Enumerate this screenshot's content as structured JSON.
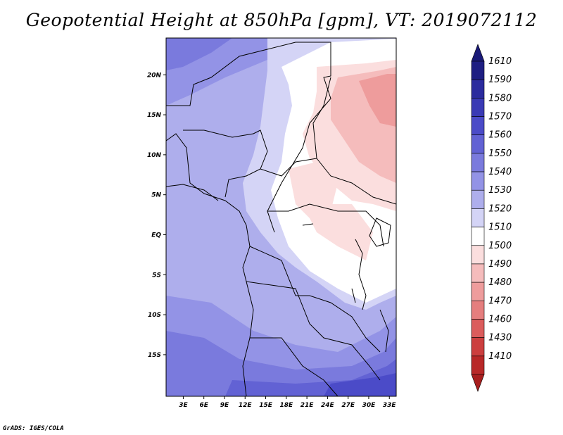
{
  "title": "Geopotential Height at 850hPa [gpm], VT: 2019072112",
  "credit": "GrADS: IGES/COLA",
  "map": {
    "lat_ticks": [
      {
        "label": "20N",
        "lat": 20
      },
      {
        "label": "15N",
        "lat": 15
      },
      {
        "label": "10N",
        "lat": 10
      },
      {
        "label": "5N",
        "lat": 5
      },
      {
        "label": "EQ",
        "lat": 0
      },
      {
        "label": "5S",
        "lat": -5
      },
      {
        "label": "10S",
        "lat": -10
      },
      {
        "label": "15S",
        "lat": -15
      }
    ],
    "lon_ticks": [
      {
        "label": "3E",
        "lon": 3
      },
      {
        "label": "6E",
        "lon": 6
      },
      {
        "label": "9E",
        "lon": 9
      },
      {
        "label": "12E",
        "lon": 12
      },
      {
        "label": "15E",
        "lon": 15
      },
      {
        "label": "18E",
        "lon": 18
      },
      {
        "label": "21E",
        "lon": 21
      },
      {
        "label": "24E",
        "lon": 24
      },
      {
        "label": "27E",
        "lon": 27
      },
      {
        "label": "30E",
        "lon": 30
      },
      {
        "label": "33E",
        "lon": 33
      }
    ],
    "colorbar": [
      {
        "label": "1610",
        "color": "#1e1e82"
      },
      {
        "label": "1590",
        "color": "#2b2b9e"
      },
      {
        "label": "1580",
        "color": "#3a3ab5"
      },
      {
        "label": "1570",
        "color": "#4b4bc8"
      },
      {
        "label": "1560",
        "color": "#6262d4"
      },
      {
        "label": "1550",
        "color": "#7a7add"
      },
      {
        "label": "1540",
        "color": "#9393e6"
      },
      {
        "label": "1530",
        "color": "#aeaeec"
      },
      {
        "label": "1520",
        "color": "#d4d4f6"
      },
      {
        "label": "1510",
        "color": "#ffffff"
      },
      {
        "label": "1500",
        "color": "#fbdede"
      },
      {
        "label": "1490",
        "color": "#f5bcbc"
      },
      {
        "label": "1480",
        "color": "#ee9c9c"
      },
      {
        "label": "1470",
        "color": "#e57e7e"
      },
      {
        "label": "1460",
        "color": "#db5c5c"
      },
      {
        "label": "1430",
        "color": "#cc3f3f"
      },
      {
        "label": "1410",
        "color": "#b82828"
      }
    ],
    "top_color": "#1a1a78",
    "bottom_color": "#a81e1e"
  }
}
